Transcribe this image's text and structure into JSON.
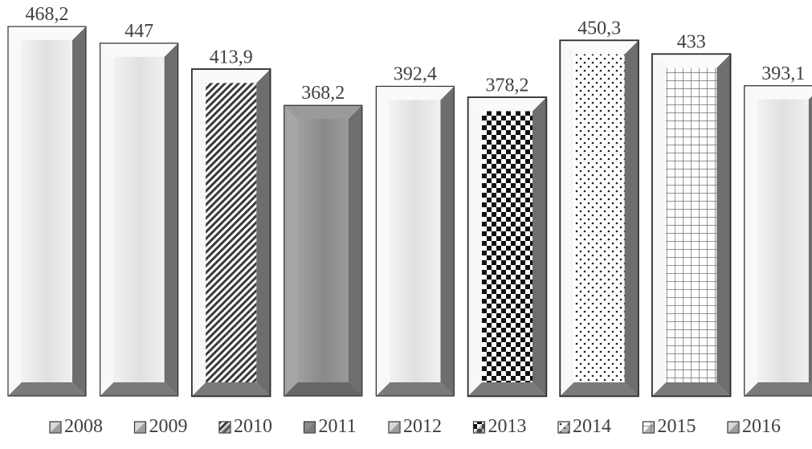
{
  "chart_data": {
    "type": "bar",
    "categories": [
      "2008",
      "2009",
      "2010",
      "2011",
      "2012",
      "2013",
      "2014",
      "2015",
      "2016"
    ],
    "values": [
      468.2,
      447,
      413.9,
      368.2,
      392.4,
      378.2,
      450.3,
      433,
      393.1
    ],
    "value_labels": [
      "468,2",
      "447",
      "413,9",
      "368,2",
      "392,4",
      "378,2",
      "450,3",
      "433",
      "393,1"
    ],
    "legend": [
      "2008",
      "2009",
      "2010",
      "2011",
      "2012",
      "2013",
      "2014",
      "2015",
      "2016"
    ],
    "legend_position": "bottom",
    "grid": false,
    "title": "",
    "xlabel": "",
    "ylabel": "",
    "styles": [
      "plain-light",
      "plain-light",
      "diagonal-hatch",
      "plain-dark",
      "plain-light",
      "checker",
      "dots",
      "grid",
      "plain-light"
    ],
    "colors": {
      "bar_light": "#dcdcdc",
      "bar_dark": "#8c8c8c",
      "bevel_dark": "#6b6b6b",
      "text": "#404040"
    }
  }
}
